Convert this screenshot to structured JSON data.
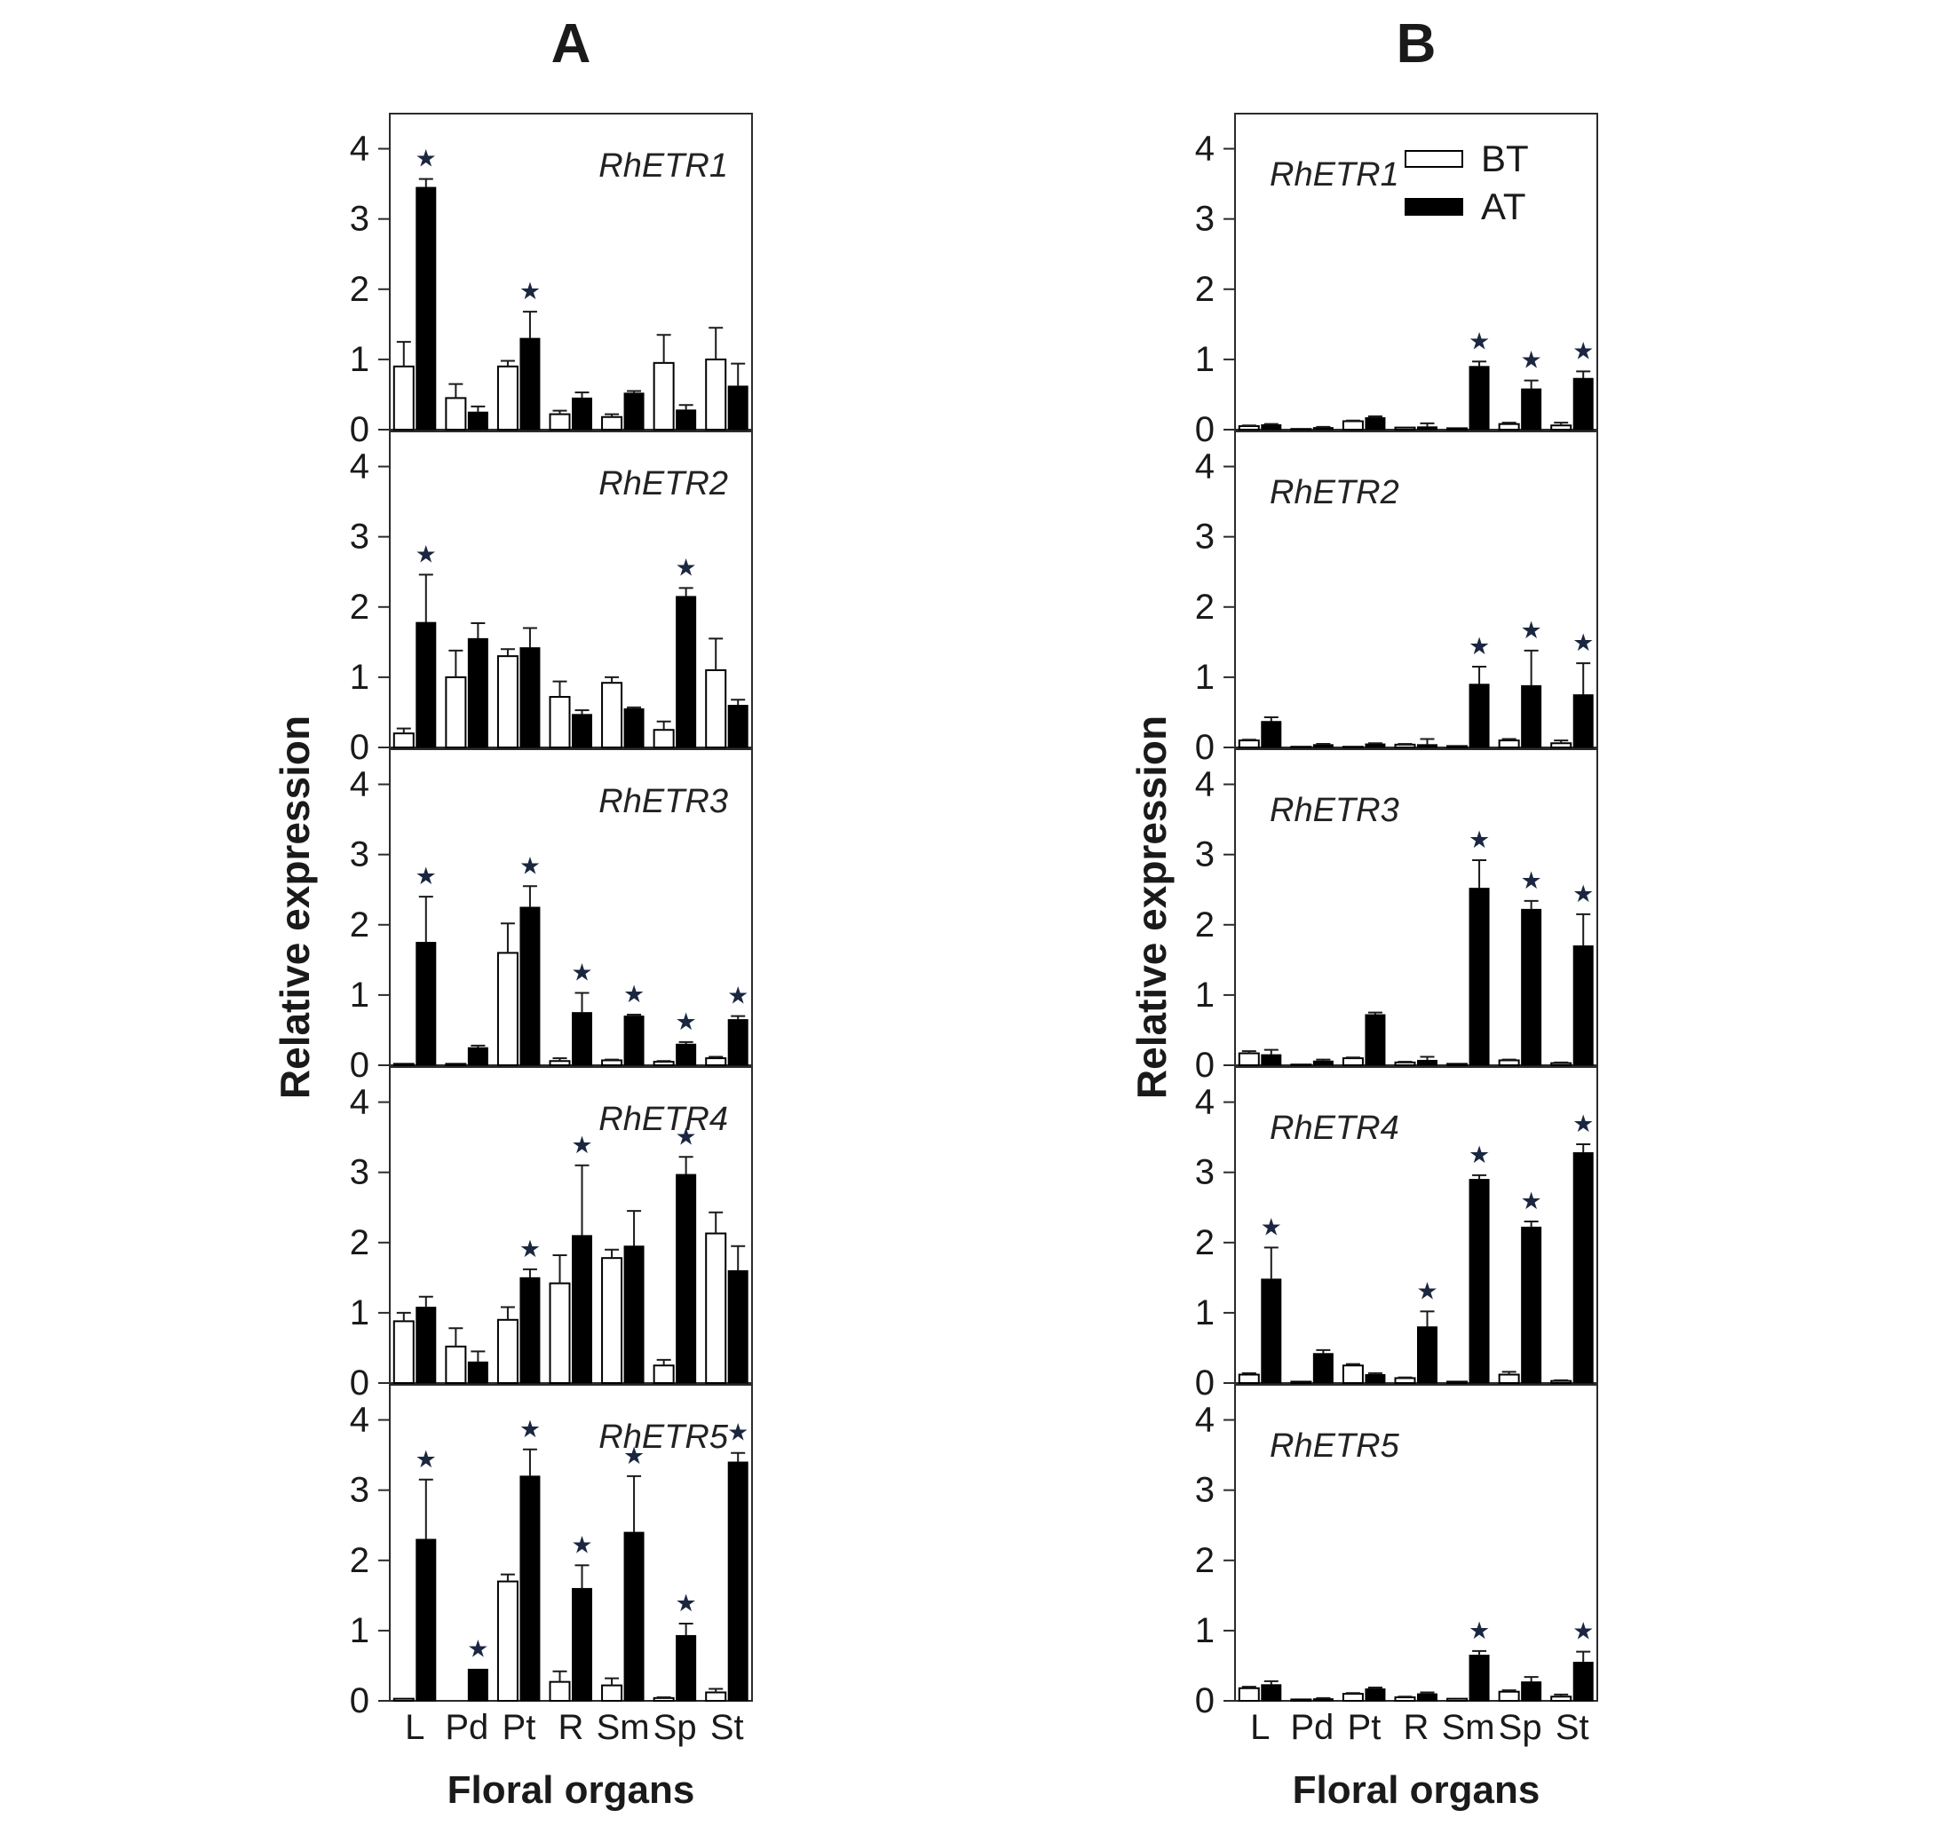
{
  "figure": {
    "column_a_label": "A",
    "column_b_label": "B",
    "y_axis_label": "Relative expression",
    "x_axis_label": "Floral organs",
    "legend": {
      "bt": "BT",
      "at": "AT"
    },
    "sig_marker": "★",
    "colors": {
      "bt_fill": "#ffffff",
      "at_fill": "#000000",
      "axis": "#2b2b2b",
      "error_bar": "#1a1a1a",
      "asterisk": "#1b2740",
      "text": "#1a1a1a"
    }
  },
  "chart_data": [
    {
      "id": "a-rhetr1",
      "column": "A",
      "row": 0,
      "type": "bar",
      "title": "RhETR1",
      "categories": [
        "L",
        "Pd",
        "Pt",
        "R",
        "Sm",
        "Sp",
        "St"
      ],
      "ylim": [
        0,
        4.5
      ],
      "yticks": [
        0,
        1,
        2,
        3,
        4
      ],
      "series": [
        {
          "name": "BT",
          "values": [
            0.9,
            0.45,
            0.9,
            0.22,
            0.18,
            0.95,
            1.0
          ],
          "errors": [
            0.35,
            0.2,
            0.08,
            0.05,
            0.04,
            0.4,
            0.45
          ]
        },
        {
          "name": "AT",
          "values": [
            3.45,
            0.25,
            1.3,
            0.45,
            0.52,
            0.28,
            0.62
          ],
          "errors": [
            0.12,
            0.08,
            0.38,
            0.08,
            0.03,
            0.07,
            0.32
          ]
        }
      ],
      "significant_at": [
        true,
        false,
        true,
        false,
        false,
        false,
        false
      ],
      "show_x_labels": false,
      "show_legend": true
    },
    {
      "id": "a-rhetr2",
      "column": "A",
      "row": 1,
      "type": "bar",
      "title": "RhETR2",
      "categories": [
        "L",
        "Pd",
        "Pt",
        "R",
        "Sm",
        "Sp",
        "St"
      ],
      "ylim": [
        0,
        4.5
      ],
      "yticks": [
        0,
        1,
        2,
        3,
        4
      ],
      "series": [
        {
          "name": "BT",
          "values": [
            0.2,
            1.0,
            1.3,
            0.72,
            0.92,
            0.25,
            1.1
          ],
          "errors": [
            0.07,
            0.38,
            0.1,
            0.22,
            0.08,
            0.12,
            0.45
          ]
        },
        {
          "name": "AT",
          "values": [
            1.78,
            1.55,
            1.42,
            0.47,
            0.55,
            2.15,
            0.6
          ],
          "errors": [
            0.68,
            0.22,
            0.28,
            0.06,
            0.02,
            0.12,
            0.08
          ]
        }
      ],
      "significant_at": [
        true,
        false,
        false,
        false,
        false,
        true,
        false
      ],
      "show_x_labels": false,
      "show_legend": false
    },
    {
      "id": "a-rhetr3",
      "column": "A",
      "row": 2,
      "type": "bar",
      "title": "RhETR3",
      "categories": [
        "L",
        "Pd",
        "Pt",
        "R",
        "Sm",
        "Sp",
        "St"
      ],
      "ylim": [
        0,
        4.5
      ],
      "yticks": [
        0,
        1,
        2,
        3,
        4
      ],
      "series": [
        {
          "name": "BT",
          "values": [
            0.02,
            0.02,
            1.6,
            0.06,
            0.07,
            0.05,
            0.1
          ],
          "errors": [
            0,
            0,
            0.42,
            0.04,
            0.01,
            0.01,
            0.02
          ]
        },
        {
          "name": "AT",
          "values": [
            1.75,
            0.25,
            2.25,
            0.75,
            0.7,
            0.3,
            0.65
          ],
          "errors": [
            0.65,
            0.03,
            0.3,
            0.28,
            0.02,
            0.03,
            0.05
          ]
        }
      ],
      "significant_at": [
        true,
        false,
        true,
        true,
        true,
        true,
        true
      ],
      "show_x_labels": false,
      "show_legend": false
    },
    {
      "id": "a-rhetr4",
      "column": "A",
      "row": 3,
      "type": "bar",
      "title": "RhETR4",
      "categories": [
        "L",
        "Pd",
        "Pt",
        "R",
        "Sm",
        "Sp",
        "St"
      ],
      "ylim": [
        0,
        4.5
      ],
      "yticks": [
        0,
        1,
        2,
        3,
        4
      ],
      "series": [
        {
          "name": "BT",
          "values": [
            0.88,
            0.52,
            0.9,
            1.42,
            1.78,
            0.25,
            2.13
          ],
          "errors": [
            0.12,
            0.26,
            0.18,
            0.4,
            0.12,
            0.08,
            0.3
          ]
        },
        {
          "name": "AT",
          "values": [
            1.08,
            0.3,
            1.5,
            2.1,
            1.95,
            2.97,
            1.6
          ],
          "errors": [
            0.15,
            0.15,
            0.12,
            1.0,
            0.5,
            0.25,
            0.35
          ]
        }
      ],
      "significant_at": [
        false,
        false,
        true,
        true,
        false,
        true,
        false
      ],
      "show_x_labels": false,
      "show_legend": false
    },
    {
      "id": "a-rhetr5",
      "column": "A",
      "row": 4,
      "type": "bar",
      "title": "RhETR5",
      "categories": [
        "L",
        "Pd",
        "Pt",
        "R",
        "Sm",
        "Sp",
        "St"
      ],
      "ylim": [
        0,
        4.5
      ],
      "yticks": [
        0,
        1,
        2,
        3,
        4
      ],
      "series": [
        {
          "name": "BT",
          "values": [
            0.03,
            0.0,
            1.7,
            0.27,
            0.22,
            0.04,
            0.12
          ],
          "errors": [
            0,
            0,
            0.1,
            0.15,
            0.1,
            0.01,
            0.05
          ]
        },
        {
          "name": "AT",
          "values": [
            2.3,
            0.45,
            3.2,
            1.6,
            2.4,
            0.93,
            3.4
          ],
          "errors": [
            0.85,
            0,
            0.38,
            0.33,
            0.8,
            0.17,
            0.13
          ]
        }
      ],
      "significant_at": [
        true,
        true,
        true,
        true,
        true,
        true,
        true
      ],
      "show_x_labels": true,
      "show_legend": false
    },
    {
      "id": "b-rhetr1",
      "column": "B",
      "row": 0,
      "type": "bar",
      "title": "RhETR1",
      "categories": [
        "L",
        "Pd",
        "Pt",
        "R",
        "Sm",
        "Sp",
        "St"
      ],
      "ylim": [
        0,
        4.5
      ],
      "yticks": [
        0,
        1,
        2,
        3,
        4
      ],
      "series": [
        {
          "name": "BT",
          "values": [
            0.05,
            0.01,
            0.12,
            0.03,
            0.02,
            0.08,
            0.06
          ],
          "errors": [
            0.01,
            0,
            0.01,
            0,
            0,
            0.02,
            0.04
          ]
        },
        {
          "name": "AT",
          "values": [
            0.07,
            0.03,
            0.17,
            0.04,
            0.9,
            0.58,
            0.73
          ],
          "errors": [
            0.01,
            0.01,
            0.02,
            0.05,
            0.07,
            0.12,
            0.1
          ]
        }
      ],
      "significant_at": [
        false,
        false,
        false,
        false,
        true,
        true,
        true
      ],
      "show_x_labels": false,
      "show_legend": false
    },
    {
      "id": "b-rhetr2",
      "column": "B",
      "row": 1,
      "type": "bar",
      "title": "RhETR2",
      "categories": [
        "L",
        "Pd",
        "Pt",
        "R",
        "Sm",
        "Sp",
        "St"
      ],
      "ylim": [
        0,
        4.5
      ],
      "yticks": [
        0,
        1,
        2,
        3,
        4
      ],
      "series": [
        {
          "name": "BT",
          "values": [
            0.1,
            0.01,
            0.01,
            0.04,
            0.02,
            0.1,
            0.06
          ],
          "errors": [
            0.01,
            0,
            0,
            0.01,
            0,
            0.02,
            0.04
          ]
        },
        {
          "name": "AT",
          "values": [
            0.37,
            0.04,
            0.05,
            0.04,
            0.9,
            0.88,
            0.75
          ],
          "errors": [
            0.06,
            0.01,
            0.01,
            0.08,
            0.25,
            0.5,
            0.45
          ]
        }
      ],
      "significant_at": [
        false,
        false,
        false,
        false,
        true,
        true,
        true
      ],
      "show_x_labels": false,
      "show_legend": false
    },
    {
      "id": "b-rhetr3",
      "column": "B",
      "row": 2,
      "type": "bar",
      "title": "RhETR3",
      "categories": [
        "L",
        "Pd",
        "Pt",
        "R",
        "Sm",
        "Sp",
        "St"
      ],
      "ylim": [
        0,
        4.5
      ],
      "yticks": [
        0,
        1,
        2,
        3,
        4
      ],
      "series": [
        {
          "name": "BT",
          "values": [
            0.17,
            0.01,
            0.1,
            0.04,
            0.02,
            0.07,
            0.03
          ],
          "errors": [
            0.03,
            0,
            0.01,
            0.01,
            0,
            0.01,
            0.01
          ]
        },
        {
          "name": "AT",
          "values": [
            0.15,
            0.06,
            0.72,
            0.07,
            2.52,
            2.22,
            1.7
          ],
          "errors": [
            0.07,
            0.02,
            0.03,
            0.05,
            0.4,
            0.12,
            0.45
          ]
        }
      ],
      "significant_at": [
        false,
        false,
        false,
        false,
        true,
        true,
        true
      ],
      "show_x_labels": false,
      "show_legend": false
    },
    {
      "id": "b-rhetr4",
      "column": "B",
      "row": 3,
      "type": "bar",
      "title": "RhETR4",
      "categories": [
        "L",
        "Pd",
        "Pt",
        "R",
        "Sm",
        "Sp",
        "St"
      ],
      "ylim": [
        0,
        4.5
      ],
      "yticks": [
        0,
        1,
        2,
        3,
        4
      ],
      "series": [
        {
          "name": "BT",
          "values": [
            0.12,
            0.02,
            0.25,
            0.07,
            0.02,
            0.12,
            0.03
          ],
          "errors": [
            0.02,
            0,
            0.02,
            0.01,
            0,
            0.04,
            0.01
          ]
        },
        {
          "name": "AT",
          "values": [
            1.48,
            0.42,
            0.12,
            0.8,
            2.9,
            2.22,
            3.28
          ],
          "errors": [
            0.45,
            0.05,
            0.02,
            0.22,
            0.06,
            0.08,
            0.12
          ]
        }
      ],
      "significant_at": [
        true,
        false,
        false,
        true,
        true,
        true,
        true
      ],
      "show_x_labels": false,
      "show_legend": false
    },
    {
      "id": "b-rhetr5",
      "column": "B",
      "row": 4,
      "type": "bar",
      "title": "RhETR5",
      "categories": [
        "L",
        "Pd",
        "Pt",
        "R",
        "Sm",
        "Sp",
        "St"
      ],
      "ylim": [
        0,
        4.5
      ],
      "yticks": [
        0,
        1,
        2,
        3,
        4
      ],
      "series": [
        {
          "name": "BT",
          "values": [
            0.18,
            0.02,
            0.1,
            0.05,
            0.03,
            0.13,
            0.06
          ],
          "errors": [
            0.02,
            0,
            0.01,
            0.01,
            0,
            0.02,
            0.03
          ]
        },
        {
          "name": "AT",
          "values": [
            0.23,
            0.03,
            0.17,
            0.1,
            0.65,
            0.27,
            0.55
          ],
          "errors": [
            0.05,
            0.01,
            0.02,
            0.02,
            0.06,
            0.07,
            0.15
          ]
        }
      ],
      "significant_at": [
        false,
        false,
        false,
        false,
        true,
        false,
        true
      ],
      "show_x_labels": true,
      "show_legend": false
    }
  ]
}
